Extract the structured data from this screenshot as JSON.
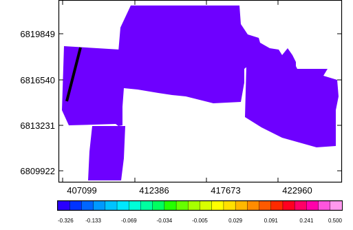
{
  "map": {
    "y_ticks": [
      "6819849",
      "6816540",
      "6813231",
      "6809922"
    ],
    "x_ticks": [
      "407099",
      "412386",
      "417673",
      "422960"
    ]
  },
  "colorbar": {
    "labels": [
      "-0.326",
      "-0.133",
      "-0.069",
      "-0.034",
      "-0.005",
      "0.029",
      "0.091",
      "0.241",
      "0.500"
    ],
    "colors": [
      "#2a00ff",
      "#0033ff",
      "#0066ff",
      "#0099ff",
      "#00c3ff",
      "#00e8ff",
      "#00ffd8",
      "#00ffa0",
      "#00ff60",
      "#24ff00",
      "#66ff00",
      "#a6ff00",
      "#d8ff00",
      "#ffff00",
      "#ffe000",
      "#ffb800",
      "#ff8c00",
      "#ff5a00",
      "#ff2a00",
      "#ff0020",
      "#ff0066",
      "#ff00aa",
      "#ff55dd",
      "#ff99ee"
    ]
  },
  "colors": {
    "survey_line": "#000000",
    "frame": "#000000"
  }
}
